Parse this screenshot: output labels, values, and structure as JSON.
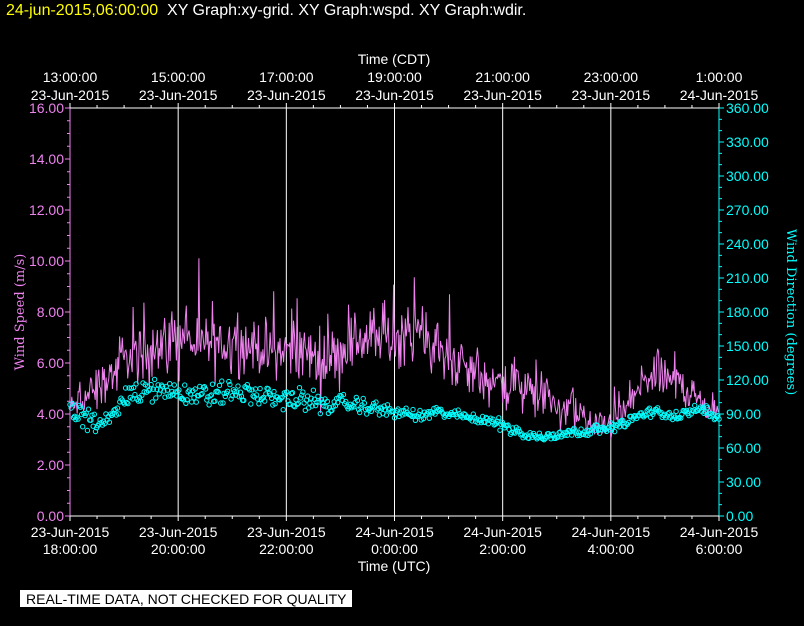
{
  "header": {
    "timestamp": "24-jun-2015,06:00:00",
    "titles": "XY Graph:xy-grid.  XY Graph:wspd.  XY Graph:wdir."
  },
  "banner": "REAL-TIME DATA, NOT CHECKED FOR QUALITY",
  "colors": {
    "background": "#000000",
    "wspd": "#ee82ee",
    "wdir": "#00ffff",
    "axis_left": "#ee82ee",
    "axis_right": "#00ffff",
    "text": "#ffffff",
    "grid": "#ffffff",
    "header_timestamp": "#ffff00"
  },
  "chart_data": {
    "type": "line",
    "title": "",
    "xlabel_bottom": "Time (UTC)",
    "xlabel_top": "Time (CDT)",
    "ylabel_left": "Wind Speed (m/s)",
    "ylabel_right": "Wind Direction (degrees)",
    "ylim_left": [
      0,
      16
    ],
    "ylim_right": [
      0,
      360
    ],
    "xlim_utc_hours": [
      18,
      30
    ],
    "grid": true,
    "x_ticks_bottom": [
      {
        "x": 18,
        "date": "23-Jun-2015",
        "time": "18:00:00"
      },
      {
        "x": 20,
        "date": "23-Jun-2015",
        "time": "20:00:00"
      },
      {
        "x": 22,
        "date": "23-Jun-2015",
        "time": "22:00:00"
      },
      {
        "x": 24,
        "date": "24-Jun-2015",
        "time": "0:00:00"
      },
      {
        "x": 26,
        "date": "24-Jun-2015",
        "time": "2:00:00"
      },
      {
        "x": 28,
        "date": "24-Jun-2015",
        "time": "4:00:00"
      },
      {
        "x": 30,
        "date": "24-Jun-2015",
        "time": "6:00:00"
      }
    ],
    "x_ticks_top": [
      {
        "x": 18,
        "time": "13:00:00",
        "date": "23-Jun-2015"
      },
      {
        "x": 20,
        "time": "15:00:00",
        "date": "23-Jun-2015"
      },
      {
        "x": 22,
        "time": "17:00:00",
        "date": "23-Jun-2015"
      },
      {
        "x": 24,
        "time": "19:00:00",
        "date": "23-Jun-2015"
      },
      {
        "x": 26,
        "time": "21:00:00",
        "date": "23-Jun-2015"
      },
      {
        "x": 28,
        "time": "23:00:00",
        "date": "23-Jun-2015"
      },
      {
        "x": 30,
        "time": "1:00:00",
        "date": "24-Jun-2015"
      }
    ],
    "y_ticks_left": [
      "0.00",
      "2.00",
      "4.00",
      "6.00",
      "8.00",
      "10.00",
      "12.00",
      "14.00",
      "16.00"
    ],
    "y_ticks_right": [
      "0.00",
      "30.00",
      "60.00",
      "90.00",
      "120.00",
      "150.00",
      "180.00",
      "210.00",
      "240.00",
      "270.00",
      "300.00",
      "330.00",
      "360.00"
    ],
    "series": [
      {
        "name": "wspd",
        "axis": "left",
        "style": "line",
        "x": [
          18.0,
          18.25,
          18.5,
          18.75,
          19.0,
          19.25,
          19.5,
          19.75,
          20.0,
          20.25,
          20.5,
          20.75,
          21.0,
          21.25,
          21.5,
          21.75,
          22.0,
          22.25,
          22.5,
          22.75,
          23.0,
          23.25,
          23.5,
          23.75,
          24.0,
          24.25,
          24.5,
          24.75,
          25.0,
          25.25,
          25.5,
          25.75,
          26.0,
          26.25,
          26.5,
          26.75,
          27.0,
          27.25,
          27.5,
          27.75,
          28.0,
          28.25,
          28.5,
          28.75,
          29.0,
          29.25,
          29.5,
          29.75,
          30.0
        ],
        "y": [
          4.2,
          4.6,
          5.0,
          5.5,
          6.0,
          6.2,
          6.5,
          6.8,
          7.0,
          6.8,
          6.6,
          6.7,
          6.8,
          6.7,
          6.6,
          6.5,
          6.5,
          6.4,
          6.3,
          6.0,
          6.5,
          6.8,
          7.0,
          7.0,
          7.0,
          7.2,
          7.0,
          6.6,
          6.2,
          5.8,
          5.5,
          5.3,
          5.1,
          5.0,
          4.8,
          4.6,
          4.3,
          4.0,
          3.8,
          3.4,
          3.6,
          4.0,
          5.0,
          5.5,
          5.4,
          5.2,
          4.8,
          4.3,
          4.0
        ],
        "spread": [
          0.6,
          0.8,
          1.0,
          1.2,
          1.2,
          1.3,
          1.3,
          1.4,
          1.5,
          1.4,
          1.3,
          1.3,
          1.3,
          1.2,
          1.2,
          1.2,
          1.2,
          1.2,
          1.3,
          1.3,
          1.3,
          1.4,
          1.4,
          1.4,
          1.4,
          1.3,
          1.3,
          1.2,
          1.2,
          1.2,
          1.1,
          1.0,
          1.0,
          1.0,
          0.9,
          0.9,
          0.8,
          0.8,
          0.8,
          0.7,
          0.7,
          0.8,
          0.9,
          1.0,
          0.9,
          0.9,
          0.8,
          0.7,
          0.5
        ]
      },
      {
        "name": "wdir",
        "axis": "right",
        "style": "points",
        "x": [
          18.0,
          18.25,
          18.5,
          18.75,
          19.0,
          19.25,
          19.5,
          19.75,
          20.0,
          20.25,
          20.5,
          20.75,
          21.0,
          21.25,
          21.5,
          21.75,
          22.0,
          22.25,
          22.5,
          22.75,
          23.0,
          23.25,
          23.5,
          23.75,
          24.0,
          24.25,
          24.5,
          24.75,
          25.0,
          25.25,
          25.5,
          25.75,
          26.0,
          26.25,
          26.5,
          26.75,
          27.0,
          27.25,
          27.5,
          27.75,
          28.0,
          28.25,
          28.5,
          28.75,
          29.0,
          29.25,
          29.5,
          29.75,
          30.0
        ],
        "y": [
          95,
          88,
          80,
          90,
          105,
          108,
          110,
          112,
          110,
          108,
          106,
          108,
          110,
          108,
          106,
          105,
          104,
          102,
          100,
          98,
          100,
          98,
          96,
          94,
          92,
          90,
          88,
          92,
          90,
          88,
          86,
          85,
          80,
          75,
          70,
          70,
          72,
          74,
          75,
          76,
          78,
          82,
          88,
          92,
          90,
          88,
          92,
          95,
          85
        ],
        "spread": [
          12,
          12,
          12,
          12,
          12,
          12,
          12,
          12,
          12,
          12,
          12,
          12,
          12,
          12,
          12,
          12,
          12,
          12,
          12,
          10,
          10,
          8,
          8,
          7,
          6,
          6,
          6,
          6,
          6,
          6,
          6,
          6,
          6,
          6,
          6,
          5,
          5,
          5,
          5,
          5,
          5,
          5,
          5,
          5,
          5,
          5,
          6,
          6,
          5
        ]
      }
    ]
  }
}
